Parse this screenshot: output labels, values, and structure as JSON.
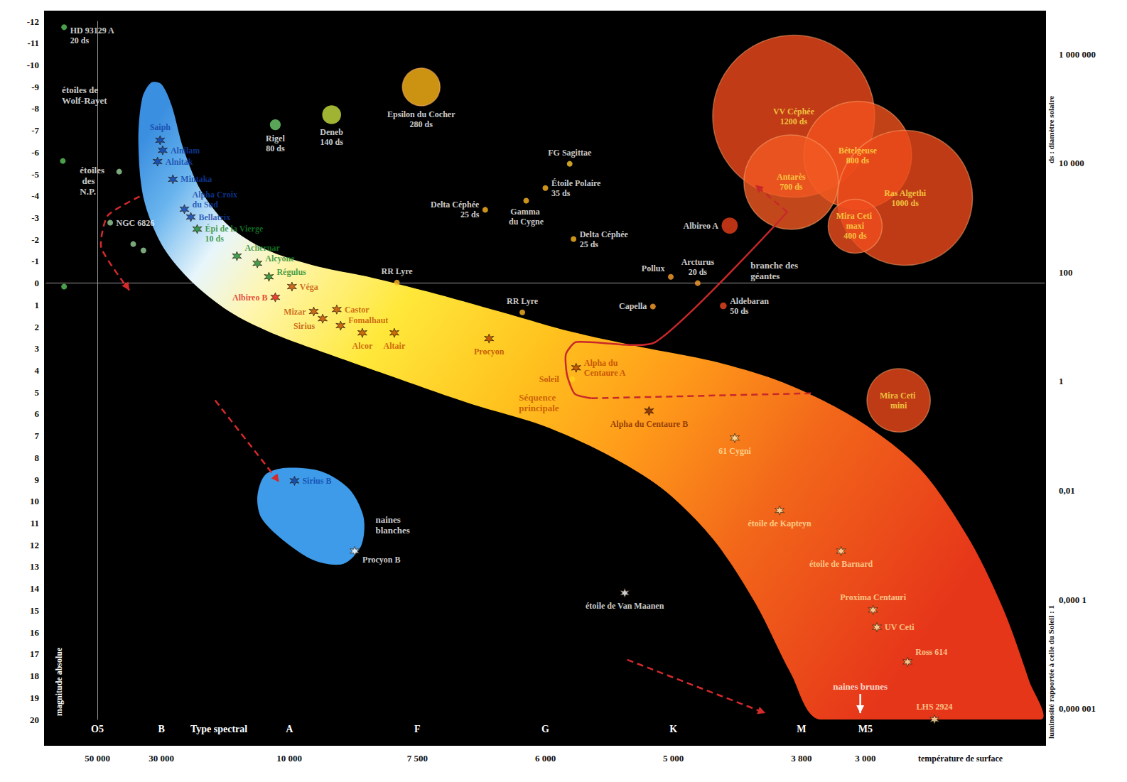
{
  "chart_data": {
    "type": "scatter",
    "x_label": "Type spectral",
    "x2_label": "température de surface",
    "y_label": "magnitude absolue",
    "y2_label": "luminosité rapportée à celle du Soleil : 1",
    "y2_sublabel": "ds : diamètre solaire",
    "log": "y2",
    "xlim": [
      -0.4,
      7.4
    ],
    "xticks": [
      {
        "value": 0,
        "label": "O5"
      },
      {
        "value": 0.5,
        "label": "B"
      },
      {
        "value": 1.5,
        "label": "A"
      },
      {
        "value": 2.5,
        "label": "F"
      },
      {
        "value": 3.5,
        "label": "G"
      },
      {
        "value": 4.5,
        "label": "K"
      },
      {
        "value": 5.5,
        "label": "M"
      },
      {
        "value": 6,
        "label": "M5"
      }
    ],
    "x2ticks": [
      {
        "value": 0,
        "label": "50 000"
      },
      {
        "value": 0.5,
        "label": "30 000"
      },
      {
        "value": 1.5,
        "label": "10 000"
      },
      {
        "value": 2.5,
        "label": "7 500"
      },
      {
        "value": 3.5,
        "label": "6 000"
      },
      {
        "value": 4.5,
        "label": "5 000"
      },
      {
        "value": 5.5,
        "label": "3 800"
      },
      {
        "value": 6,
        "label": "3 000"
      }
    ],
    "ylim": [
      -12,
      20
    ],
    "yticks": [
      -12,
      -11,
      -10,
      -9,
      -8,
      -7,
      -6,
      -5,
      -4,
      -3,
      -2,
      -1,
      0,
      1,
      2,
      3,
      4,
      5,
      6,
      7,
      8,
      9,
      10,
      11,
      12,
      13,
      14,
      15,
      16,
      17,
      18,
      19,
      20
    ],
    "y2lim": [
      6.31e-07,
      3981072
    ],
    "y2ticks": [
      {
        "value": 1000000,
        "label": "1 000 000"
      },
      {
        "value": 10000,
        "label": "10 000"
      },
      100,
      1,
      {
        "value": 0.01,
        "label": "0,01"
      },
      {
        "value": 0.0001,
        "label": "0,000 1"
      },
      {
        "value": 1e-06,
        "label": "0,000 001"
      }
    ],
    "points": [
      {
        "label": "HD 93129 A",
        "x": -0.26,
        "y": -11.73,
        "marker": "circle",
        "color": "#5cc85c",
        "ds": 20,
        "ds_label": "20 ds"
      },
      {
        "x": -0.27,
        "y": -5.6,
        "marker": "circle",
        "color": "#5cc85c"
      },
      {
        "x": -0.26,
        "y": 0.16,
        "marker": "circle",
        "color": "#5cc85c"
      },
      {
        "x": 0.17,
        "y": -5.11,
        "marker": "circle",
        "color": "#9ad29a"
      },
      {
        "x": 0.28,
        "y": -1.79,
        "marker": "circle",
        "color": "#9ad29a"
      },
      {
        "x": 0.36,
        "y": -1.5,
        "marker": "circle",
        "color": "#9ad29a"
      },
      {
        "label": "NGC 6826",
        "x": 0.1,
        "y": -2.77,
        "marker": "circle",
        "color": "#9ad29a"
      },
      {
        "label": "Saiph",
        "x": 0.49,
        "y": -6.55,
        "marker": "asterisk",
        "color": "#0d3fa8"
      },
      {
        "label": "Alnilam",
        "x": 0.51,
        "y": -6.09,
        "marker": "asterisk",
        "color": "#0d3fa8"
      },
      {
        "label": "Alnitak",
        "x": 0.47,
        "y": -5.57,
        "marker": "asterisk",
        "color": "#0d3fa8"
      },
      {
        "label": "Mintaka",
        "x": 0.59,
        "y": -4.76,
        "marker": "asterisk",
        "color": "#0d3fa8"
      },
      {
        "label": "Alpha Croix du Sud",
        "x": 0.68,
        "y": -3.39,
        "marker": "asterisk",
        "color": "#0d3fa8"
      },
      {
        "label": "Bellatrix",
        "x": 0.73,
        "y": -3.03,
        "marker": "asterisk",
        "color": "#0d3fa8"
      },
      {
        "label": "Épi de la Vierge",
        "x": 0.78,
        "y": -2.48,
        "marker": "asterisk",
        "color": "#17862a",
        "ds": 10,
        "ds_label": "10 ds"
      },
      {
        "label": "Achernar",
        "x": 1.09,
        "y": -1.24,
        "marker": "asterisk",
        "color": "#17862a"
      },
      {
        "label": "Alcyone",
        "x": 1.25,
        "y": -0.91,
        "marker": "asterisk",
        "color": "#17862a"
      },
      {
        "label": "Régulus",
        "x": 1.34,
        "y": -0.29,
        "marker": "asterisk",
        "color": "#17862a"
      },
      {
        "label": "Véga",
        "x": 1.52,
        "y": 0.16,
        "marker": "asterisk",
        "color": "#c04a00"
      },
      {
        "label": "Albireo B",
        "x": 1.39,
        "y": 0.65,
        "marker": "asterisk",
        "color": "#e01818"
      },
      {
        "label": "Mizar",
        "x": 1.69,
        "y": 1.3,
        "marker": "asterisk",
        "color": "#c04a00"
      },
      {
        "label": "Sirius",
        "x": 1.76,
        "y": 1.63,
        "marker": "asterisk",
        "color": "#c04a00"
      },
      {
        "label": "Castor",
        "x": 1.87,
        "y": 1.21,
        "marker": "asterisk",
        "color": "#c04a00"
      },
      {
        "label": "Fomalhaut",
        "x": 1.9,
        "y": 1.95,
        "marker": "asterisk",
        "color": "#c04a00"
      },
      {
        "label": "Alcor",
        "x": 2.07,
        "y": 2.28,
        "marker": "asterisk",
        "color": "#c04a00"
      },
      {
        "label": "Altair",
        "x": 2.32,
        "y": 2.28,
        "marker": "asterisk",
        "color": "#c04a00"
      },
      {
        "label": "Procyon",
        "x": 3.06,
        "y": 2.54,
        "marker": "asterisk",
        "color": "#b84000"
      },
      {
        "label": "Alpha du Centaure A",
        "x": 3.74,
        "y": 3.88,
        "marker": "asterisk",
        "color": "#b84000"
      },
      {
        "label": "Soleil",
        "x": 3.71,
        "y": 4.4,
        "marker": "circle",
        "color": "#ffd21a"
      },
      {
        "label": "Alpha du Centaure B",
        "x": 4.31,
        "y": 5.86,
        "marker": "asterisk",
        "color": "#7a2600"
      },
      {
        "label": "61 Cygni",
        "x": 4.98,
        "y": 7.1,
        "marker": "asterisk",
        "color": "#ffe6a6"
      },
      {
        "label": "étoile de Kapteyn",
        "x": 5.33,
        "y": 10.42,
        "marker": "asterisk",
        "color": "#ffe6a6"
      },
      {
        "label": "étoile de Barnard",
        "x": 5.81,
        "y": 12.28,
        "marker": "asterisk",
        "color": "#ffe6a6"
      },
      {
        "label": "Proxima Centauri",
        "x": 6.06,
        "y": 14.98,
        "marker": "asterisk",
        "color": "#ffe6a6"
      },
      {
        "label": "UV Ceti",
        "x": 6.09,
        "y": 15.77,
        "marker": "asterisk",
        "color": "#ffe6a6"
      },
      {
        "label": "Ross 614",
        "x": 6.33,
        "y": 17.36,
        "marker": "asterisk",
        "color": "#ffe6a6"
      },
      {
        "label": "LHS 2924",
        "x": 6.54,
        "y": 20,
        "marker": "asterisk",
        "color": "#ffe6a6"
      },
      {
        "label": "Sirius B",
        "x": 1.54,
        "y": 9.06,
        "marker": "asterisk",
        "color": "#0d3fa8"
      },
      {
        "label": "Procyon B",
        "x": 2.01,
        "y": 12.28,
        "marker": "asterisk",
        "color": "#ffffff"
      },
      {
        "label": "étoile de Van Maanen",
        "x": 4.12,
        "y": 14.2,
        "marker": "asterisk",
        "color": "#ffffff"
      },
      {
        "label": "Rigel",
        "x": 1.39,
        "y": -7.26,
        "marker": "circle",
        "color": "#6fcf6f",
        "ds": 80,
        "ds_label": "80 ds"
      },
      {
        "label": "Deneb",
        "x": 1.83,
        "y": -7.72,
        "marker": "circle",
        "color": "#c8e040",
        "ds": 140,
        "ds_label": "140 ds"
      },
      {
        "label": "Epsilon du Cocher",
        "x": 2.53,
        "y": -8.99,
        "marker": "circle",
        "color": "#ffb818",
        "ds": 280,
        "ds_label": "280 ds"
      },
      {
        "label": "FG Sagittae",
        "x": 3.69,
        "y": -5.47,
        "marker": "circle",
        "color": "#ffc830"
      },
      {
        "label": "Étoile Polaire",
        "x": 3.5,
        "y": -4.36,
        "marker": "circle",
        "color": "#ffb820",
        "ds": 35,
        "ds_label": "35 ds"
      },
      {
        "label": "Delta Céphée",
        "x": 3.03,
        "y": -3.36,
        "marker": "circle",
        "color": "#ffb820",
        "ds": 25,
        "ds_label": "25 ds"
      },
      {
        "label": "Gamma du Cygne",
        "x": 3.35,
        "y": -3.78,
        "marker": "circle",
        "color": "#ffb820"
      },
      {
        "label": "Delta Céphée",
        "x": 3.72,
        "y": -2.02,
        "marker": "circle",
        "color": "#ffb820",
        "ds": 25,
        "ds_label": "25 ds"
      },
      {
        "label": "RR Lyre",
        "x": 2.34,
        "y": -0.03,
        "marker": "circle",
        "color": "#ffb820"
      },
      {
        "label": "RR Lyre",
        "x": 3.32,
        "y": 1.34,
        "marker": "circle",
        "color": "#ffb820"
      },
      {
        "label": "Pollux",
        "x": 4.48,
        "y": -0.29,
        "marker": "circle",
        "color": "#ffa030"
      },
      {
        "label": "Arcturus",
        "x": 4.69,
        "y": 0,
        "marker": "circle",
        "color": "#ffa030",
        "ds": 20,
        "ds_label": "20 ds"
      },
      {
        "label": "Capella",
        "x": 4.34,
        "y": 1.07,
        "marker": "circle",
        "color": "#ffa030"
      },
      {
        "label": "Aldebaran",
        "x": 4.89,
        "y": 1.04,
        "marker": "circle",
        "color": "#f04820",
        "ds": 50,
        "ds_label": "50 ds"
      },
      {
        "label": "Albireo A",
        "x": 4.94,
        "y": -2.64,
        "marker": "circle",
        "color": "#e8401a",
        "ds": 120
      },
      {
        "label": "VV Céphée",
        "x": 5.44,
        "y": -7.65,
        "marker": "circle",
        "color": "#f04a1c",
        "ds": 1200,
        "ds_label": "1200 ds"
      },
      {
        "label": "Bételgeuse",
        "x": 5.94,
        "y": -5.86,
        "marker": "circle",
        "color": "#f2521e",
        "ds": 800,
        "ds_label": "800 ds"
      },
      {
        "label": "Ras Algethi",
        "x": 6.31,
        "y": -3.91,
        "marker": "circle",
        "color": "#ee4a1a",
        "ds": 1000,
        "ds_label": "1000 ds"
      },
      {
        "label": "Antarès",
        "x": 5.42,
        "y": -4.63,
        "marker": "circle",
        "color": "#f25a22",
        "ds": 700,
        "ds_label": "700 ds"
      },
      {
        "label": "Mira Ceti maxi",
        "x": 5.92,
        "y": -2.61,
        "marker": "circle",
        "color": "#f04e1e",
        "ds": 400,
        "ds_label": "400 ds"
      },
      {
        "label": "Mira Ceti mini",
        "x": 6.26,
        "y": 5.37,
        "marker": "circle",
        "color": "#ee4a1a",
        "ds": 470
      }
    ],
    "regions": [
      {
        "outline": [
          [
            0.5,
            -9.12
          ],
          [
            0.58,
            -8.14
          ],
          [
            0.67,
            -6.19
          ],
          [
            0.81,
            -4.23
          ],
          [
            1.03,
            -2.61
          ],
          [
            1.31,
            -1.56
          ],
          [
            1.69,
            -0.81
          ],
          [
            2.14,
            -0.26
          ],
          [
            2.58,
            0.39
          ],
          [
            3.14,
            1.3
          ],
          [
            3.69,
            2.21
          ],
          [
            4.25,
            2.93
          ],
          [
            4.81,
            3.58
          ],
          [
            5.36,
            4.56
          ],
          [
            5.92,
            6.19
          ],
          [
            6.42,
            8.47
          ],
          [
            6.81,
            11.73
          ],
          [
            7.08,
            14.98
          ],
          [
            7.28,
            18.24
          ],
          [
            7.37,
            20
          ],
          [
            5.64,
            20
          ],
          [
            5.42,
            17.92
          ],
          [
            5.14,
            14.66
          ],
          [
            4.81,
            11.73
          ],
          [
            4.42,
            9.45
          ],
          [
            3.97,
            7.82
          ],
          [
            3.47,
            6.51
          ],
          [
            2.92,
            5.54
          ],
          [
            2.36,
            4.4
          ],
          [
            1.81,
            3.26
          ],
          [
            1.36,
            2.28
          ],
          [
            1.03,
            1.3
          ],
          [
            0.72,
            -0.16
          ],
          [
            0.5,
            -1.79
          ],
          [
            0.36,
            -3.91
          ],
          [
            0.32,
            -6.51
          ],
          [
            0.35,
            -8.47
          ],
          [
            0.42,
            -9.19
          ]
        ]
      },
      {
        "outline": [
          [
            1.25,
            9.77
          ],
          [
            1.31,
            8.79
          ],
          [
            1.47,
            8.47
          ],
          [
            1.75,
            8.63
          ],
          [
            1.97,
            9.45
          ],
          [
            2.08,
            10.75
          ],
          [
            2.06,
            12.05
          ],
          [
            1.92,
            12.87
          ],
          [
            1.69,
            12.7
          ],
          [
            1.44,
            11.73
          ],
          [
            1.28,
            10.75
          ]
        ],
        "color": "#3d9be9"
      }
    ],
    "tracks": [
      {
        "points": [
          [
            0.33,
            -3.97
          ],
          [
            0.08,
            -3.09
          ],
          [
            0.03,
            -1.63
          ],
          [
            0.25,
            0.33
          ]
        ],
        "line_style": "dashed",
        "marker": "arrow",
        "color": "#d42a2a"
      },
      {
        "points": [
          [
            0.92,
            5.37
          ],
          [
            1.42,
            9.12
          ]
        ],
        "line_style": "dashed",
        "marker": "arrow",
        "color": "#d42a2a"
      },
      {
        "points": [
          [
            4.14,
            17.26
          ],
          [
            5.22,
            19.71
          ]
        ],
        "line_style": "dashed",
        "marker": "arrow",
        "color": "#d42a2a"
      },
      {
        "points": [
          [
            3.86,
            5.28
          ],
          [
            3.73,
            5.08
          ],
          [
            3.67,
            4.23
          ],
          [
            3.66,
            3.26
          ],
          [
            3.74,
            2.7
          ],
          [
            4.36,
            2.7
          ],
          [
            5.39,
            -3.26
          ]
        ],
        "line_style": "solid",
        "marker": "none",
        "color": "#c8282a"
      },
      {
        "points": [
          [
            5.39,
            -3.26
          ],
          [
            5.14,
            -4.5
          ]
        ],
        "line_style": "dashed",
        "marker": "arrow",
        "color": "#c8282a"
      },
      {
        "points": [
          [
            3.86,
            5.28
          ],
          [
            5.58,
            5.05
          ]
        ],
        "line_style": "dashed",
        "marker": "none",
        "color": "#c8282a"
      },
      {
        "points": [
          [
            5.96,
            18.83
          ],
          [
            5.96,
            19.71
          ]
        ],
        "line_style": "solid",
        "marker": "arrow",
        "color": "#ffffff"
      }
    ],
    "annotations": [
      {
        "text": "étoiles de Wolf-Rayet",
        "x": -0.28,
        "y": -8.6,
        "color": "#ffffff"
      },
      {
        "text": "étoiles des N.P.",
        "x": -0.14,
        "y": -4.69,
        "color": "#ffffff"
      },
      {
        "text": "Séquence principale",
        "x": 3.29,
        "y": 5.47,
        "color": "#c04800"
      },
      {
        "text": "naines blanches",
        "x": 2.17,
        "y": 11.07,
        "color": "#ffffff"
      },
      {
        "text": "branche des géantes",
        "x": 5.1,
        "y": -0.59,
        "color": "#ffffff"
      },
      {
        "text": "naines brunes",
        "x": 5.96,
        "y": 18.5,
        "color": "#ffffff"
      }
    ]
  }
}
